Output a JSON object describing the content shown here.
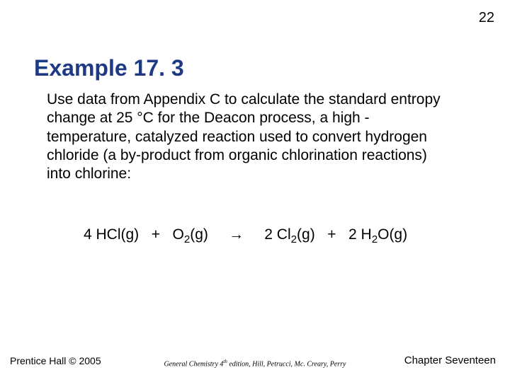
{
  "page_number": "22",
  "title": "Example 17. 3",
  "body": "Use data from Appendix C to calculate the standard entropy change at 25 °C for the Deacon process, a high -temperature, catalyzed reaction used to convert hydrogen chloride (a by-product from organic chlorination reactions) into chlorine:",
  "equation": {
    "lhs_coef1": "4 HCl(g)",
    "plus1": "+",
    "lhs_o2_pre": "O",
    "lhs_o2_sub": "2",
    "lhs_o2_post": "(g)",
    "arrow": "→",
    "rhs_cl2_pre": "2 Cl",
    "rhs_cl2_sub": "2",
    "rhs_cl2_post": "(g)",
    "plus2": "+",
    "rhs_h2o_pre": "2 H",
    "rhs_h2o_sub": "2",
    "rhs_h2o_post": "O(g)"
  },
  "footer": {
    "left": "Prentice Hall © 2005",
    "center_pre": "General Chemistry 4",
    "center_sup": "th",
    "center_post": " edition, Hill, Petrucci, Mc. Creary, Perry",
    "right": "Chapter Seventeen"
  },
  "colors": {
    "title": "#1e3a85",
    "text": "#000000",
    "background": "#ffffff"
  }
}
